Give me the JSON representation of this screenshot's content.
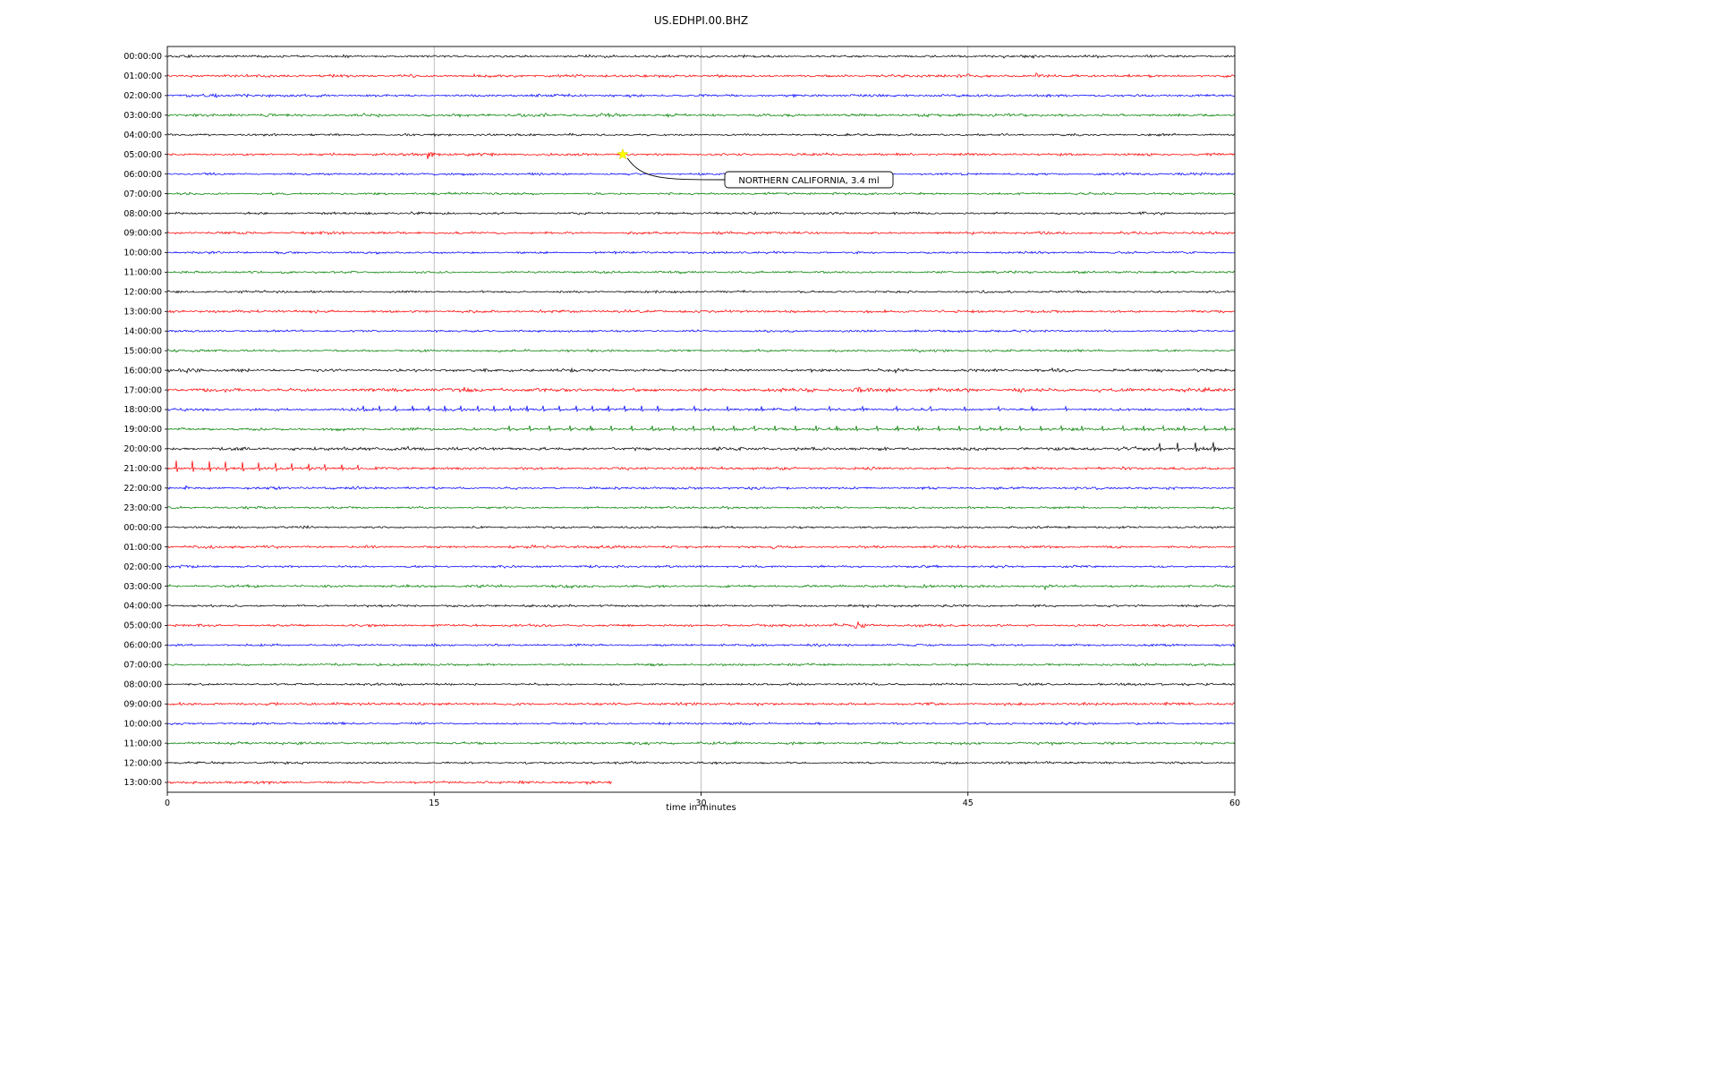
{
  "figure": {
    "title": "US.EDHPI.00.BHZ",
    "xlabel": "time in minutes"
  },
  "chart_data": {
    "type": "line",
    "subtype": "helicorder-dayplot",
    "title": "US.EDHPI.00.BHZ",
    "xlabel": "time in minutes",
    "ylabel": "",
    "xlim": [
      0,
      60
    ],
    "x_ticks": [
      0,
      15,
      30,
      45,
      60
    ],
    "x_tick_labels": [
      "0",
      "15",
      "30",
      "45",
      "60"
    ],
    "grid": true,
    "trace_colors_cycle": [
      "#000000",
      "#ff0000",
      "#0000ff",
      "#008000"
    ],
    "annotation": {
      "text": "NORTHERN CALIFORNIA, 3.4 ml",
      "row_index": 5,
      "row_label": "05:00:00",
      "minute": 25.6,
      "marker": "star",
      "marker_color": "#ffff00"
    },
    "rows": [
      {
        "label": "00:00:00",
        "color": "#000000",
        "noise": 0.62,
        "events": [
          [
            27.9,
            1.6,
            0.3
          ],
          [
            30.3,
            1.6,
            0.25
          ],
          [
            32.4,
            4.5,
            0.35
          ],
          [
            36.0,
            1.2,
            0.2
          ],
          [
            40.2,
            1.6,
            0.25
          ],
          [
            44.9,
            1.4,
            0.2
          ],
          [
            48.6,
            1.8,
            0.7
          ],
          [
            50.8,
            1.4,
            0.3
          ],
          [
            55.0,
            1.2,
            0.3
          ]
        ]
      },
      {
        "label": "01:00:00",
        "color": "#ff0000",
        "noise": 0.72,
        "events": [
          [
            5.4,
            1.8,
            0.3
          ],
          [
            13.7,
            2.8,
            0.5
          ],
          [
            16.9,
            2.2,
            0.4
          ],
          [
            21.4,
            1.8,
            0.35
          ],
          [
            24.0,
            1.2,
            0.2
          ],
          [
            27.6,
            1.4,
            0.25
          ],
          [
            30.1,
            1.6,
            0.2
          ],
          [
            33.8,
            1.2,
            0.2
          ],
          [
            37.9,
            1.8,
            0.3
          ],
          [
            44.6,
            1.8,
            0.3
          ],
          [
            48.8,
            3.6,
            0.6
          ],
          [
            53.9,
            1.8,
            0.35
          ],
          [
            58.0,
            1.2,
            0.2
          ]
        ]
      },
      {
        "label": "02:00:00",
        "color": "#0000ff",
        "noise": 0.68,
        "events": [
          [
            5.7,
            2.2,
            1.1
          ],
          [
            7.9,
            2.2,
            0.9
          ],
          [
            21.7,
            1.4,
            0.3
          ],
          [
            27.7,
            1.4,
            0.3
          ],
          [
            34.7,
            2.2,
            0.6
          ]
        ]
      },
      {
        "label": "03:00:00",
        "color": "#008000",
        "noise": 0.72,
        "events": [
          [
            3.1,
            2.2,
            1.3
          ],
          [
            11.0,
            3.8,
            0.3
          ],
          [
            11.7,
            2.0,
            0.9
          ],
          [
            16.8,
            1.8,
            0.5
          ],
          [
            20.8,
            1.6,
            1.6
          ],
          [
            28.1,
            1.8,
            0.5
          ],
          [
            33.0,
            1.2,
            0.5
          ],
          [
            43.4,
            1.4,
            1.2
          ],
          [
            48.0,
            2.2,
            0.5
          ],
          [
            50.1,
            2.4,
            0.8
          ],
          [
            53.5,
            1.2,
            0.4
          ]
        ]
      },
      {
        "label": "04:00:00",
        "color": "#000000",
        "noise": 0.58,
        "events": [
          [
            8.0,
            1.5,
            1.1
          ],
          [
            11.3,
            1.9,
            0.5
          ],
          [
            22.6,
            2.2,
            0.3
          ],
          [
            27.0,
            1.2,
            0.2
          ]
        ]
      },
      {
        "label": "05:00:00",
        "color": "#ff0000",
        "noise": 0.68,
        "events": [
          [
            4.8,
            1.4,
            0.3
          ],
          [
            14.6,
            8.5,
            0.55
          ],
          [
            15.2,
            3.0,
            0.4
          ],
          [
            25.4,
            1.2,
            0.3
          ]
        ]
      },
      {
        "label": "06:00:00",
        "color": "#0000ff",
        "noise": 0.58
      },
      {
        "label": "07:00:00",
        "color": "#008000",
        "noise": 0.58
      },
      {
        "label": "08:00:00",
        "color": "#000000",
        "noise": 0.58
      },
      {
        "label": "09:00:00",
        "color": "#ff0000",
        "noise": 0.68
      },
      {
        "label": "10:00:00",
        "color": "#0000ff",
        "noise": 0.58
      },
      {
        "label": "11:00:00",
        "color": "#008000",
        "noise": 0.58
      },
      {
        "label": "12:00:00",
        "color": "#000000",
        "noise": 0.58
      },
      {
        "label": "13:00:00",
        "color": "#ff0000",
        "noise": 0.68
      },
      {
        "label": "14:00:00",
        "color": "#0000ff",
        "noise": 0.58
      },
      {
        "label": "15:00:00",
        "color": "#008000",
        "noise": 0.6
      },
      {
        "label": "16:00:00",
        "color": "#000000",
        "noise": 0.72,
        "events": [
          [
            1.1,
            3.6,
            0.4
          ],
          [
            1.6,
            3.8,
            0.35
          ],
          [
            5.0,
            1.2,
            0.2
          ],
          [
            40.7,
            2.0,
            1.1
          ],
          [
            49.7,
            2.6,
            0.9
          ],
          [
            55.4,
            2.2,
            0.9
          ],
          [
            57.9,
            1.4,
            0.3
          ]
        ]
      },
      {
        "label": "17:00:00",
        "color": "#ff0000",
        "noise": 0.95,
        "events": [
          [
            2.0,
            1.5,
            0.3
          ],
          [
            5.1,
            1.6,
            0.3
          ],
          [
            8.2,
            1.5,
            0.3
          ],
          [
            12.1,
            1.6,
            0.3
          ],
          [
            15.3,
            1.4,
            0.3
          ],
          [
            19.0,
            1.6,
            0.3
          ],
          [
            22.8,
            1.5,
            0.3
          ],
          [
            26.4,
            1.6,
            0.3
          ],
          [
            30.9,
            1.5,
            0.3
          ],
          [
            34.8,
            1.6,
            0.3
          ],
          [
            38.8,
            2.6,
            0.4
          ],
          [
            42.9,
            2.2,
            0.3
          ],
          [
            46.2,
            1.6,
            0.3
          ],
          [
            47.8,
            2.8,
            0.5
          ],
          [
            52.4,
            1.6,
            0.3
          ],
          [
            55.2,
            1.4,
            0.3
          ]
        ]
      },
      {
        "label": "18:00:00",
        "color": "#0000ff",
        "noise": 0.68,
        "events": [
          [
            1.0,
            1.6,
            0.3
          ]
        ],
        "spike_trains": [
          {
            "start": 11.0,
            "end": 27.6,
            "interval": 0.92,
            "amp": 4.2,
            "amp2": 4.2
          },
          {
            "start": 29.6,
            "end": 52.0,
            "interval": 1.9,
            "amp": 3.6,
            "amp2": 3.2
          }
        ]
      },
      {
        "label": "19:00:00",
        "color": "#008000",
        "noise": 0.68,
        "events": [
          [
            16.0,
            1.4,
            0.3
          ]
        ],
        "spike_trains": [
          {
            "start": 19.2,
            "end": 59.6,
            "interval": 1.15,
            "amp": 4.0,
            "amp2": 3.6
          }
        ]
      },
      {
        "label": "20:00:00",
        "color": "#000000",
        "noise": 0.82,
        "events": [
          [
            2.9,
            2.0,
            0.4
          ],
          [
            9.8,
            2.2,
            0.4
          ],
          [
            13.0,
            1.6,
            0.3
          ],
          [
            20.9,
            1.6,
            0.3
          ],
          [
            25.0,
            1.6,
            0.3
          ],
          [
            29.0,
            1.6,
            0.3
          ],
          [
            33.5,
            1.8,
            0.3
          ],
          [
            36.6,
            1.8,
            0.3
          ],
          [
            41.0,
            1.8,
            0.3
          ],
          [
            44.0,
            1.8,
            0.3
          ],
          [
            48.0,
            1.6,
            0.3
          ],
          [
            52.0,
            1.6,
            0.3
          ]
        ],
        "spike_trains": [
          {
            "start": 55.8,
            "end": 58.8,
            "interval": 1.0,
            "amp": 6.5,
            "amp2": 7.5
          }
        ]
      },
      {
        "label": "21:00:00",
        "color": "#ff0000",
        "noise": 0.72,
        "spike_trains": [
          {
            "start": 0.5,
            "end": 11.2,
            "interval": 0.93,
            "amp": 9.0,
            "amp2": 3.5
          }
        ]
      },
      {
        "label": "22:00:00",
        "color": "#0000ff",
        "noise": 0.62,
        "events": [
          [
            1.0,
            2.8,
            0.35
          ],
          [
            10.4,
            2.2,
            0.5
          ],
          [
            16.9,
            2.2,
            0.5
          ],
          [
            25.0,
            1.0,
            0.2
          ],
          [
            50.9,
            2.4,
            0.35
          ],
          [
            53.3,
            1.8,
            0.3
          ]
        ]
      },
      {
        "label": "23:00:00",
        "color": "#008000",
        "noise": 0.58,
        "events": [
          [
            36.3,
            1.4,
            0.4
          ]
        ]
      },
      {
        "label": "00:00:00",
        "color": "#000000",
        "noise": 0.58,
        "events": [
          [
            7.0,
            1.1,
            0.3
          ],
          [
            19.8,
            1.0,
            0.2
          ],
          [
            27.0,
            1.0,
            0.2
          ],
          [
            33.0,
            1.0,
            0.2
          ]
        ]
      },
      {
        "label": "01:00:00",
        "color": "#ff0000",
        "noise": 0.68,
        "events": [
          [
            1.4,
            1.4,
            0.5
          ],
          [
            5.6,
            1.4,
            0.3
          ],
          [
            20.4,
            2.2,
            0.4
          ],
          [
            26.0,
            1.2,
            0.2
          ],
          [
            31.4,
            1.4,
            0.3
          ],
          [
            33.8,
            1.8,
            1.8
          ],
          [
            37.6,
            1.8,
            0.3
          ],
          [
            44.0,
            1.2,
            0.2
          ]
        ]
      },
      {
        "label": "02:00:00",
        "color": "#0000ff",
        "noise": 0.58
      },
      {
        "label": "03:00:00",
        "color": "#008000",
        "noise": 0.68,
        "events": [
          [
            42.4,
            2.6,
            1.3
          ],
          [
            44.0,
            1.8,
            0.5
          ],
          [
            49.3,
            3.2,
            0.45
          ],
          [
            57.4,
            2.2,
            0.4
          ],
          [
            58.4,
            1.8,
            0.3
          ]
        ]
      },
      {
        "label": "04:00:00",
        "color": "#000000",
        "noise": 0.62,
        "events": [
          [
            13.9,
            1.1,
            0.3
          ],
          [
            22.0,
            1.0,
            0.2
          ]
        ]
      },
      {
        "label": "05:00:00",
        "color": "#ff0000",
        "noise": 0.68,
        "events": [
          [
            35.9,
            1.4,
            0.5
          ],
          [
            37.4,
            1.8,
            0.35
          ],
          [
            38.6,
            7.5,
            0.45
          ],
          [
            39.5,
            1.6,
            0.3
          ]
        ]
      },
      {
        "label": "06:00:00",
        "color": "#0000ff",
        "noise": 0.58
      },
      {
        "label": "07:00:00",
        "color": "#008000",
        "noise": 0.58
      },
      {
        "label": "08:00:00",
        "color": "#000000",
        "noise": 0.58
      },
      {
        "label": "09:00:00",
        "color": "#ff0000",
        "noise": 0.72
      },
      {
        "label": "10:00:00",
        "color": "#0000ff",
        "noise": 0.58
      },
      {
        "label": "11:00:00",
        "color": "#008000",
        "noise": 0.66
      },
      {
        "label": "12:00:00",
        "color": "#000000",
        "noise": 0.58
      },
      {
        "label": "13:00:00",
        "color": "#ff0000",
        "noise": 0.68,
        "end": 25.0
      }
    ]
  }
}
